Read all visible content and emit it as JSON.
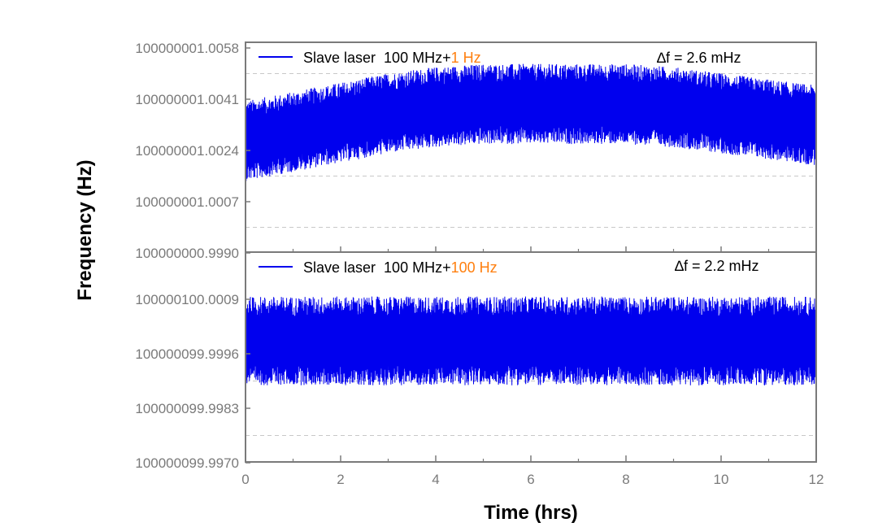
{
  "colors": {
    "series": "#0000ee",
    "highlight": "#ff7f0e",
    "frame": "#7a7a7a",
    "gridline": "#c8c8c8"
  },
  "chart_data": [
    {
      "type": "line",
      "panel": "top",
      "x_range": [
        0,
        12
      ],
      "ylim": [
        100000000.999,
        100000001.0058
      ],
      "y_ticks": [
        "100000001.0058",
        "100000001.0041",
        "100000001.0024",
        "100000001.0007",
        "100000000.9990"
      ],
      "grid": "dashed horizontal lines between labeled ticks",
      "legend": {
        "text": "Slave laser  100 MHz+",
        "highlight_text": "1 Hz",
        "placement": "top-left"
      },
      "annotation": "∆f = 2.6 mHz",
      "series": [
        {
          "name": "Slave laser  100 MHz+1 Hz",
          "x": [
            0,
            1,
            2,
            3,
            4,
            5,
            6,
            7,
            8,
            9,
            10,
            11,
            12
          ],
          "y": [
            100000001.0026,
            100000001.0029,
            100000001.0032,
            100000001.0035,
            100000001.0037,
            100000001.0038,
            100000001.0038,
            100000001.0038,
            100000001.0038,
            100000001.0037,
            100000001.0035,
            100000001.0033,
            100000001.0031
          ],
          "band_halfwidth": 0.0013
        }
      ]
    },
    {
      "type": "line",
      "panel": "bottom",
      "x_range": [
        0,
        12
      ],
      "ylim": [
        100000099.997,
        100000100.0022
      ],
      "y_ticks": [
        "100000100.0009",
        "100000099.9996",
        "100000099.9983",
        "100000099.9970"
      ],
      "grid": "dashed horizontal lines between labeled ticks",
      "legend": {
        "text": "Slave laser  100 MHz+",
        "highlight_text": "100 Hz",
        "placement": "top-left"
      },
      "annotation": "∆f = 2.2 mHz",
      "series": [
        {
          "name": "Slave laser  100 MHz+100 Hz",
          "x": [
            0,
            1,
            2,
            3,
            4,
            5,
            6,
            7,
            8,
            9,
            10,
            11,
            12
          ],
          "y": [
            100000100.0,
            100000100.0,
            100000100.0,
            100000100.0,
            100000100.0,
            100000100.0,
            100000100.0,
            100000100.0,
            100000100.0,
            100000100.0,
            100000100.0,
            100000100.0,
            100000100.0
          ],
          "band_halfwidth": 0.0011
        }
      ]
    }
  ],
  "shared_x": {
    "label": "Time (hrs)",
    "ticks": [
      "0",
      "2",
      "4",
      "6",
      "8",
      "10",
      "12"
    ],
    "range": [
      0,
      12
    ]
  },
  "shared_y_label": "Frequency (Hz)"
}
